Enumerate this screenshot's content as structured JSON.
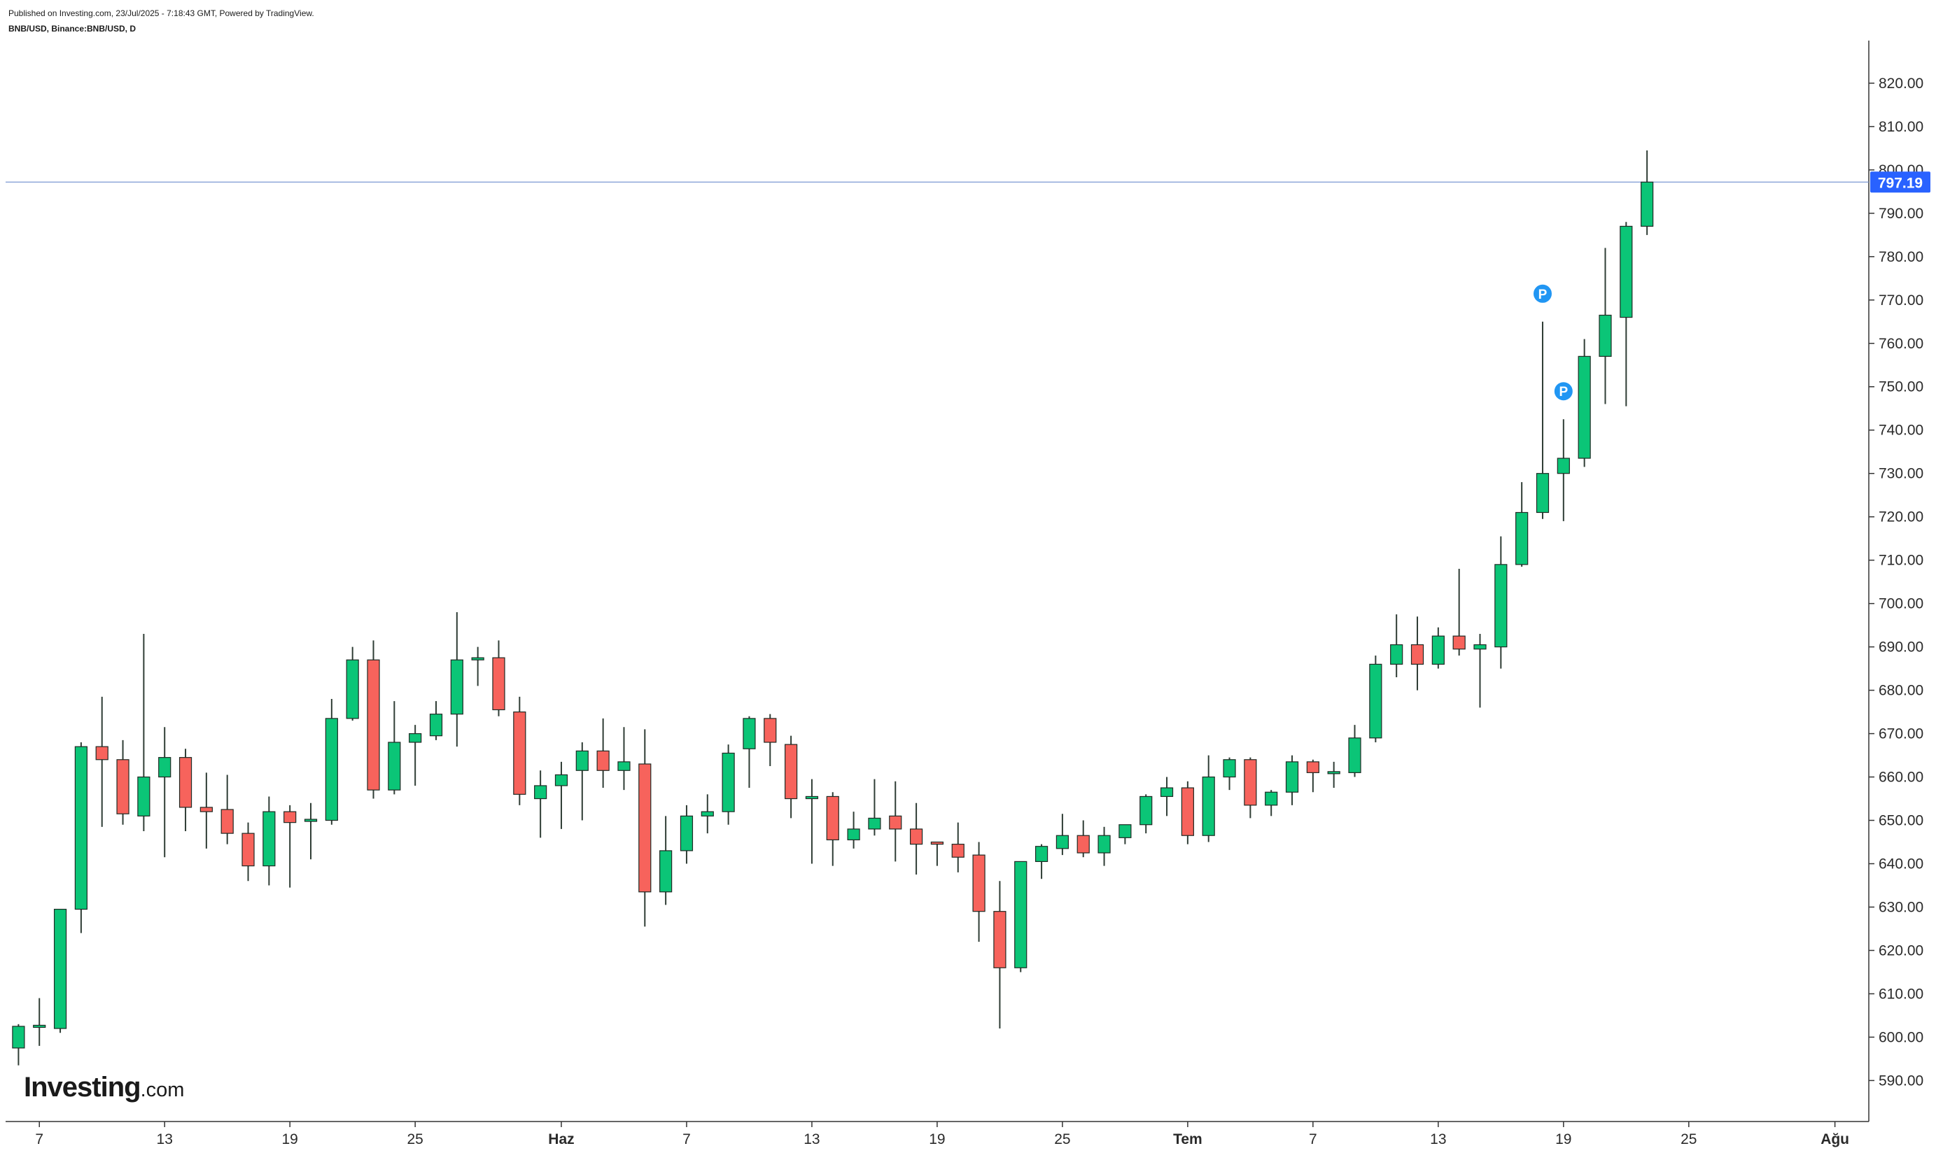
{
  "header": {
    "published_line": "Published on Investing.com, 23/Jul/2025 - 7:18:43 GMT, Powered by TradingView.",
    "symbol_line": "BNB/USD, Binance:BNB/USD, D"
  },
  "logo": {
    "brand": "Investing",
    "suffix": ".com"
  },
  "colors": {
    "up": "#0bc577",
    "down": "#f7635c",
    "wick": "#2f3d35",
    "axis": "#333333",
    "price_line": "#7b98d2",
    "price_label_bg": "#2962ff",
    "marker": "#2196f3"
  },
  "chart_data": {
    "type": "candlestick",
    "title": "",
    "xlabel": "",
    "ylabel": "",
    "ylim": [
      581,
      829
    ],
    "y_ticks": [
      "590.00",
      "600.00",
      "610.00",
      "620.00",
      "630.00",
      "640.00",
      "650.00",
      "660.00",
      "670.00",
      "680.00",
      "690.00",
      "700.00",
      "710.00",
      "720.00",
      "730.00",
      "740.00",
      "750.00",
      "760.00",
      "770.00",
      "780.00",
      "790.00",
      "800.00",
      "810.00",
      "820.00"
    ],
    "x_ticks": [
      {
        "index": 1,
        "label": "7"
      },
      {
        "index": 7,
        "label": "13"
      },
      {
        "index": 13,
        "label": "19"
      },
      {
        "index": 19,
        "label": "25"
      },
      {
        "index": 26,
        "label": "Haz"
      },
      {
        "index": 32,
        "label": "7"
      },
      {
        "index": 38,
        "label": "13"
      },
      {
        "index": 44,
        "label": "19"
      },
      {
        "index": 50,
        "label": "25"
      },
      {
        "index": 56,
        "label": "Tem"
      },
      {
        "index": 62,
        "label": "7"
      },
      {
        "index": 68,
        "label": "13"
      },
      {
        "index": 74,
        "label": "19"
      },
      {
        "index": 80,
        "label": "25"
      },
      {
        "index": 87,
        "label": "Ağu"
      }
    ],
    "last_price": "797.19",
    "grid": false,
    "candles": [
      {
        "o": 597.5,
        "h": 603.0,
        "l": 593.5,
        "c": 602.5
      },
      {
        "o": 602.5,
        "h": 609.0,
        "l": 598.0,
        "c": 602.5
      },
      {
        "o": 602.0,
        "h": 629.5,
        "l": 601.0,
        "c": 629.5
      },
      {
        "o": 629.5,
        "h": 668.0,
        "l": 624.0,
        "c": 667.0
      },
      {
        "o": 667.0,
        "h": 678.5,
        "l": 648.5,
        "c": 664.0
      },
      {
        "o": 664.0,
        "h": 668.5,
        "l": 649.0,
        "c": 651.5
      },
      {
        "o": 651.0,
        "h": 693.0,
        "l": 647.5,
        "c": 660.0
      },
      {
        "o": 660.0,
        "h": 671.5,
        "l": 641.5,
        "c": 664.5
      },
      {
        "o": 664.5,
        "h": 666.5,
        "l": 647.5,
        "c": 653.0
      },
      {
        "o": 653.0,
        "h": 661.0,
        "l": 643.5,
        "c": 652.0
      },
      {
        "o": 652.5,
        "h": 660.5,
        "l": 644.5,
        "c": 647.0
      },
      {
        "o": 647.0,
        "h": 649.5,
        "l": 636.0,
        "c": 639.5
      },
      {
        "o": 639.5,
        "h": 655.5,
        "l": 635.0,
        "c": 652.0
      },
      {
        "o": 652.0,
        "h": 653.5,
        "l": 634.5,
        "c": 649.5
      },
      {
        "o": 650.0,
        "h": 654.0,
        "l": 641.0,
        "c": 650.0
      },
      {
        "o": 650.0,
        "h": 678.0,
        "l": 649.0,
        "c": 673.5
      },
      {
        "o": 673.5,
        "h": 690.0,
        "l": 673.0,
        "c": 687.0
      },
      {
        "o": 687.0,
        "h": 691.5,
        "l": 655.0,
        "c": 657.0
      },
      {
        "o": 657.0,
        "h": 677.5,
        "l": 656.0,
        "c": 668.0
      },
      {
        "o": 668.0,
        "h": 672.0,
        "l": 658.0,
        "c": 670.0
      },
      {
        "o": 669.5,
        "h": 677.5,
        "l": 668.5,
        "c": 674.5
      },
      {
        "o": 674.5,
        "h": 698.0,
        "l": 667.0,
        "c": 687.0
      },
      {
        "o": 687.0,
        "h": 690.0,
        "l": 681.0,
        "c": 687.5
      },
      {
        "o": 687.5,
        "h": 691.5,
        "l": 674.0,
        "c": 675.5
      },
      {
        "o": 675.0,
        "h": 678.5,
        "l": 653.5,
        "c": 656.0
      },
      {
        "o": 655.0,
        "h": 661.5,
        "l": 646.0,
        "c": 658.0
      },
      {
        "o": 658.0,
        "h": 663.5,
        "l": 648.0,
        "c": 660.5
      },
      {
        "o": 661.5,
        "h": 668.0,
        "l": 650.0,
        "c": 666.0
      },
      {
        "o": 666.0,
        "h": 673.5,
        "l": 657.5,
        "c": 661.5
      },
      {
        "o": 661.5,
        "h": 671.5,
        "l": 657.0,
        "c": 663.5
      },
      {
        "o": 663.0,
        "h": 671.0,
        "l": 625.5,
        "c": 633.5
      },
      {
        "o": 633.5,
        "h": 651.0,
        "l": 630.5,
        "c": 643.0
      },
      {
        "o": 643.0,
        "h": 653.5,
        "l": 640.0,
        "c": 651.0
      },
      {
        "o": 651.0,
        "h": 656.0,
        "l": 647.0,
        "c": 652.0
      },
      {
        "o": 652.0,
        "h": 667.5,
        "l": 649.0,
        "c": 665.5
      },
      {
        "o": 666.5,
        "h": 674.0,
        "l": 657.5,
        "c": 673.5
      },
      {
        "o": 673.5,
        "h": 674.5,
        "l": 662.5,
        "c": 668.0
      },
      {
        "o": 667.5,
        "h": 669.5,
        "l": 650.5,
        "c": 655.0
      },
      {
        "o": 655.0,
        "h": 659.5,
        "l": 640.0,
        "c": 655.5
      },
      {
        "o": 655.5,
        "h": 656.5,
        "l": 639.5,
        "c": 645.5
      },
      {
        "o": 645.5,
        "h": 652.0,
        "l": 643.5,
        "c": 648.0
      },
      {
        "o": 648.0,
        "h": 659.5,
        "l": 646.5,
        "c": 650.5
      },
      {
        "o": 651.0,
        "h": 659.0,
        "l": 640.5,
        "c": 648.0
      },
      {
        "o": 648.0,
        "h": 654.0,
        "l": 637.5,
        "c": 644.5
      },
      {
        "o": 645.0,
        "h": 645.0,
        "l": 639.5,
        "c": 644.5
      },
      {
        "o": 644.5,
        "h": 649.5,
        "l": 638.0,
        "c": 641.5
      },
      {
        "o": 642.0,
        "h": 645.0,
        "l": 622.0,
        "c": 629.0
      },
      {
        "o": 629.0,
        "h": 636.0,
        "l": 602.0,
        "c": 616.0
      },
      {
        "o": 616.0,
        "h": 640.5,
        "l": 615.0,
        "c": 640.5
      },
      {
        "o": 640.5,
        "h": 644.5,
        "l": 636.5,
        "c": 644.0
      },
      {
        "o": 643.5,
        "h": 651.5,
        "l": 642.0,
        "c": 646.5
      },
      {
        "o": 646.5,
        "h": 650.0,
        "l": 641.5,
        "c": 642.5
      },
      {
        "o": 642.5,
        "h": 648.5,
        "l": 639.5,
        "c": 646.5
      },
      {
        "o": 646.0,
        "h": 649.0,
        "l": 644.5,
        "c": 649.0
      },
      {
        "o": 649.0,
        "h": 656.0,
        "l": 647.0,
        "c": 655.5
      },
      {
        "o": 655.5,
        "h": 660.0,
        "l": 651.0,
        "c": 657.5
      },
      {
        "o": 657.5,
        "h": 659.0,
        "l": 644.5,
        "c": 646.5
      },
      {
        "o": 646.5,
        "h": 665.0,
        "l": 645.0,
        "c": 660.0
      },
      {
        "o": 660.0,
        "h": 664.5,
        "l": 657.0,
        "c": 664.0
      },
      {
        "o": 664.0,
        "h": 664.5,
        "l": 650.5,
        "c": 653.5
      },
      {
        "o": 653.5,
        "h": 657.0,
        "l": 651.0,
        "c": 656.5
      },
      {
        "o": 656.5,
        "h": 665.0,
        "l": 653.5,
        "c": 663.5
      },
      {
        "o": 663.5,
        "h": 664.0,
        "l": 656.5,
        "c": 661.0
      },
      {
        "o": 661.0,
        "h": 663.5,
        "l": 657.5,
        "c": 661.0
      },
      {
        "o": 661.0,
        "h": 672.0,
        "l": 660.0,
        "c": 669.0
      },
      {
        "o": 669.0,
        "h": 688.0,
        "l": 668.0,
        "c": 686.0
      },
      {
        "o": 686.0,
        "h": 697.5,
        "l": 683.0,
        "c": 690.5
      },
      {
        "o": 690.5,
        "h": 697.0,
        "l": 680.0,
        "c": 686.0
      },
      {
        "o": 686.0,
        "h": 694.5,
        "l": 685.0,
        "c": 692.5
      },
      {
        "o": 692.5,
        "h": 708.0,
        "l": 688.0,
        "c": 689.5
      },
      {
        "o": 689.5,
        "h": 693.0,
        "l": 676.0,
        "c": 690.5
      },
      {
        "o": 690.0,
        "h": 715.5,
        "l": 685.0,
        "c": 709.0
      },
      {
        "o": 709.0,
        "h": 728.0,
        "l": 708.5,
        "c": 721.0
      },
      {
        "o": 721.0,
        "h": 765.0,
        "l": 719.5,
        "c": 730.0
      },
      {
        "o": 730.0,
        "h": 742.5,
        "l": 719.0,
        "c": 733.5
      },
      {
        "o": 733.5,
        "h": 761.0,
        "l": 731.5,
        "c": 757.0
      },
      {
        "o": 757.0,
        "h": 782.0,
        "l": 746.0,
        "c": 766.5
      },
      {
        "o": 766.0,
        "h": 788.0,
        "l": 745.5,
        "c": 787.0
      },
      {
        "o": 787.0,
        "h": 804.5,
        "l": 785.0,
        "c": 797.19
      }
    ],
    "markers": [
      {
        "index": 73,
        "label": "P"
      },
      {
        "index": 74,
        "label": "P"
      }
    ]
  }
}
